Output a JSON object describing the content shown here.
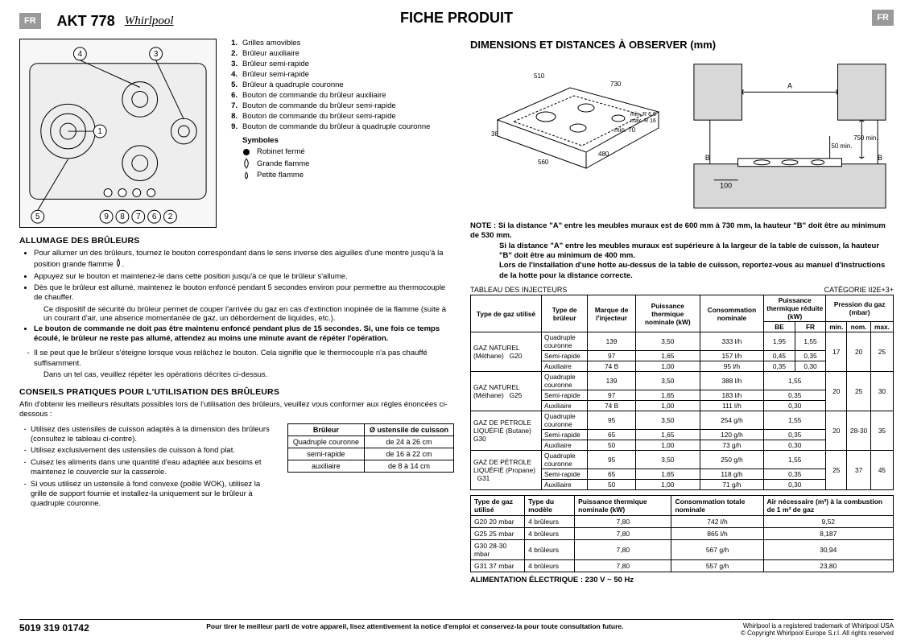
{
  "header": {
    "lang": "FR",
    "model": "AKT 778",
    "brand": "Whirlpool",
    "title": "FICHE PRODUIT"
  },
  "legend": {
    "items": [
      "Grilles amovibles",
      "Brûleur auxiliaire",
      "Brûleur semi-rapide",
      "Brûleur semi-rapide",
      "Brûleur à quadruple couronne",
      "Bouton de commande du brûleur auxiliaire",
      "Bouton de commande du brûleur semi-rapide",
      "Bouton de commande du brûleur semi-rapide",
      "Bouton de commande du brûleur à quadruple couronne"
    ],
    "symbols_heading": "Symboles",
    "sym1": "Robinet fermé",
    "sym2": "Grande flamme",
    "sym3": "Petite flamme"
  },
  "sections": {
    "allumage_h": "ALLUMAGE DES BRÛLEURS",
    "allumage": {
      "b1": "Pour allumer un des brûleurs, tournez le bouton correspondant dans le sens inverse des aiguilles d'une montre jusqu'à la position grande flamme ",
      "b1b": ".",
      "b2": "Appuyez sur le bouton et maintenez-le dans cette position jusqu'à ce que le brûleur s'allume.",
      "b3": "Dès que le brûleur est allumé, maintenez le bouton enfoncé pendant 5 secondes environ pour permettre au thermocouple de chauffer.",
      "b3s": "Ce dispositif de sécurité du brûleur permet de couper l'arrivée du gaz en cas d'extinction inopinée de la flamme (suite à un courant d'air, une absence momentanée de gaz, un débordement de liquides, etc.).",
      "b4": "Le bouton de commande ne doit pas être maintenu enfoncé pendant plus de 15 secondes. Si, une fois ce temps écoulé, le brûleur ne reste pas allumé, attendez au moins une minute avant de répéter l'opération.",
      "d1": "Il se peut que le brûleur s'éteigne lorsque vous relâchez le bouton. Cela signifie que le thermocouple n'a pas chauffé suffisamment.",
      "d1s": "Dans un tel cas, veuillez répéter les opérations décrites ci-dessus."
    },
    "conseils_h": "CONSEILS PRATIQUES POUR L'UTILISATION DES BRÛLEURS",
    "conseils_intro": "Afin d'obtenir les meilleurs résultats possibles lors de l'utilisation des brûleurs, veuillez vous conformer aux règles énoncées ci-dessous :",
    "tips": [
      "Utilisez des ustensiles de cuisson adaptés à la dimension des brûleurs (consultez le tableau ci-contre).",
      "Utilisez exclusivement des ustensiles de cuisson à fond plat.",
      "Cuisez les aliments dans une quantité d'eau adaptée aux besoins et maintenez le couvercle sur la casserole.",
      "Si vous utilisez un ustensile à fond convexe (poêle WOK), utilisez la grille de support fournie et installez-la uniquement sur le brûleur à quadruple couronne."
    ],
    "utensil_table": {
      "h1": "Brûleur",
      "h2": "Ø ustensile de cuisson",
      "rows": [
        [
          "Quadruple couronne",
          "de 24 à 26 cm"
        ],
        [
          "semi-rapide",
          "de 16 à 22 cm"
        ],
        [
          "auxiliaire",
          "de 8 à 14 cm"
        ]
      ]
    }
  },
  "right": {
    "dim_h": "DIMENSIONS ET DISTANCES À OBSERVER (mm)",
    "fig1": {
      "w": "510",
      "d": "730",
      "cut_w": "560",
      "cut_d": "480",
      "depth": "38",
      "clear": "min. 70",
      "r": "min. R 6,5 / max. R 16"
    },
    "fig2": {
      "A": "A",
      "B": "B",
      "s": "750 min.",
      "h": "50 min.",
      "x": "100"
    },
    "note_label": "NOTE :",
    "note1": "Si la distance \"A\" entre les meubles muraux est de 600 mm à 730 mm, la hauteur \"B\" doit être au minimum de 530 mm.",
    "note2": "Si la distance \"A\" entre les meubles muraux est supérieure à la largeur de la table de cuisson, la hauteur \"B\" doit être au minimum de 400 mm.",
    "note3": "Lors de l'installation d'une hotte au-dessus de la table de cuisson, reportez-vous au manuel d'instructions de la hotte pour la distance correcte.",
    "table_title": "TABLEAU DES INJECTEURS",
    "table_cat": "CATÉGORIE II2E+3+",
    "inj_headers": {
      "c1": "Type de gaz utilisé",
      "c2": "Type de brûleur",
      "c3": "Marque de l'injecteur",
      "c4": "Puissance thermique nominale (kW)",
      "c5": "Consommation nominale",
      "c6": "Puissance thermique réduite (kW)",
      "c7": "Pression du gaz (mbar)",
      "be": "BE",
      "fr": "FR",
      "min": "min.",
      "nom": "nom.",
      "max": "max."
    },
    "inj_rows": [
      {
        "gas": "GAZ NATUREL (Méthane)",
        "code": "G20",
        "b": [
          "Quadruple couronne",
          "Semi-rapide",
          "Auxiliaire"
        ],
        "m": [
          "139",
          "97",
          "74 B"
        ],
        "p": [
          "3,50",
          "1,65",
          "1,00"
        ],
        "c": [
          "333 l/h",
          "157 l/h",
          "95 l/h"
        ],
        "be": [
          "1,95",
          "0,45",
          "0,35"
        ],
        "fr": [
          "1,55",
          "0,35",
          "0,30"
        ],
        "min": "17",
        "nom": "20",
        "max": "25"
      },
      {
        "gas": "GAZ NATUREL (Méthane)",
        "code": "G25",
        "b": [
          "Quadruple couronne",
          "Semi-rapide",
          "Auxiliaire"
        ],
        "m": [
          "139",
          "97",
          "74 B"
        ],
        "p": [
          "3,50",
          "1,65",
          "1,00"
        ],
        "c": [
          "388 l/h",
          "183 l/h",
          "111 l/h"
        ],
        "be": null,
        "fr": [
          "1,55",
          "0,35",
          "0,30"
        ],
        "min": "20",
        "nom": "25",
        "max": "30"
      },
      {
        "gas": "GAZ DE PÉTROLE LIQUÉFIÉ (Butane)",
        "code": "G30",
        "b": [
          "Quadruple couronne",
          "Semi-rapide",
          "Auxiliaire"
        ],
        "m": [
          "95",
          "65",
          "50"
        ],
        "p": [
          "3,50",
          "1,65",
          "1,00"
        ],
        "c": [
          "254 g/h",
          "120 g/h",
          "73 g/h"
        ],
        "be": null,
        "fr": [
          "1,55",
          "0,35",
          "0,30"
        ],
        "min": "20",
        "nom": "28-30",
        "max": "35"
      },
      {
        "gas": "GAZ DE PÉTROLE LIQUÉFIÉ (Propane)",
        "code": "G31",
        "b": [
          "Quadruple couronne",
          "Semi-rapide",
          "Auxiliaire"
        ],
        "m": [
          "95",
          "65",
          "50"
        ],
        "p": [
          "3,50",
          "1,65",
          "1,00"
        ],
        "c": [
          "250 g/h",
          "118 g/h",
          "71 g/h"
        ],
        "be": null,
        "fr": [
          "1,55",
          "0,35",
          "0,30"
        ],
        "min": "25",
        "nom": "37",
        "max": "45"
      }
    ],
    "total_headers": {
      "c1": "Type de gaz utilisé",
      "c2": "Type du modèle",
      "c3": "Puissance thermique nominale (kW)",
      "c4": "Consommation totale nominale",
      "c5": "Air nécessaire (m³) à la combustion de 1 m³ de gaz"
    },
    "total_rows": [
      [
        "G20 20 mbar",
        "4 brûleurs",
        "7,80",
        "742 l/h",
        "9,52"
      ],
      [
        "G25 25 mbar",
        "4 brûleurs",
        "7,80",
        "865 l/h",
        "8,187"
      ],
      [
        "G30 28-30 mbar",
        "4 brûleurs",
        "7,80",
        "567 g/h",
        "30,94"
      ],
      [
        "G31 37 mbar",
        "4 brûleurs",
        "7,80",
        "557 g/h",
        "23,80"
      ]
    ],
    "elec": "ALIMENTATION ÉLECTRIQUE : 230 V ~ 50 Hz"
  },
  "footer": {
    "code": "5019 319 01742",
    "mid": "Pour tirer le meilleur parti de votre appareil, lisez attentivement la notice d'emploi et conservez-la pour toute consultation future.",
    "copy1": "Whirlpool is a registered trademark of Whirlpool USA",
    "copy2": "© Copyright Whirlpool Europe S.r.l. All rights reserved"
  },
  "colors": {
    "badge": "#999",
    "border": "#000",
    "bgdiag": "#f5f5f5",
    "wall": "#d8d8d8"
  }
}
